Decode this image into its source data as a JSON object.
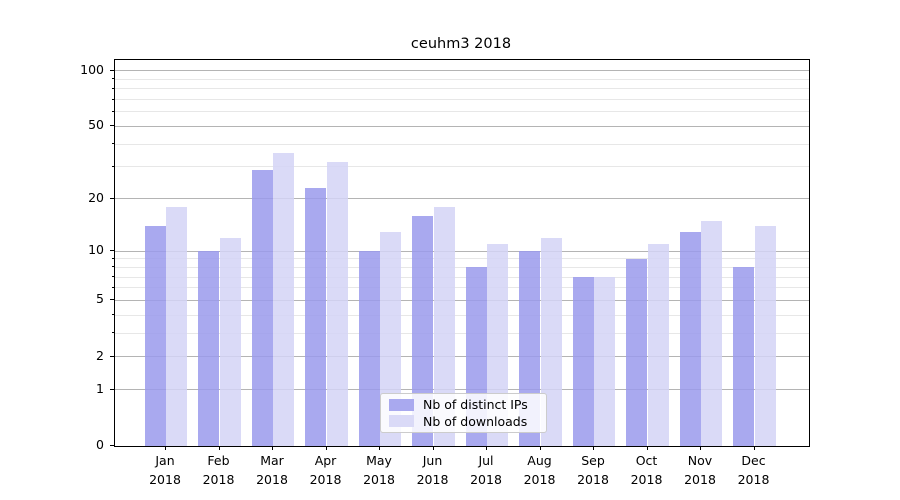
{
  "window": {
    "background": "#ffffff"
  },
  "chart_data": {
    "type": "bar",
    "title": "ceuhm3 2018",
    "categories": [
      "Jan",
      "Feb",
      "Mar",
      "Apr",
      "May",
      "Jun",
      "Jul",
      "Aug",
      "Sep",
      "Oct",
      "Nov",
      "Dec"
    ],
    "category_year_line": "2018",
    "series": [
      {
        "name": "Nb of distinct IPs",
        "color": "#a9a9ef",
        "values": [
          14,
          10,
          29,
          23,
          10,
          16,
          8,
          10,
          7,
          9,
          13,
          8
        ]
      },
      {
        "name": "Nb of downloads",
        "color": "#dadaf7",
        "values": [
          18,
          12,
          36,
          32,
          13,
          18,
          11,
          12,
          7,
          11,
          15,
          14
        ]
      }
    ],
    "xlabel": "",
    "ylabel": "",
    "yscale": "log1p",
    "ylim": [
      0,
      114.6
    ],
    "yticks_major": [
      0,
      1,
      2,
      5,
      10,
      20,
      50,
      100
    ],
    "yticks_minor": [
      3,
      4,
      6,
      7,
      8,
      9,
      30,
      40,
      60,
      70,
      80,
      90
    ],
    "grid": "horizontal",
    "grid_major_color": "#b4b4b4",
    "grid_minor_color": "#e7e7e7",
    "legend_position": "lower center"
  }
}
